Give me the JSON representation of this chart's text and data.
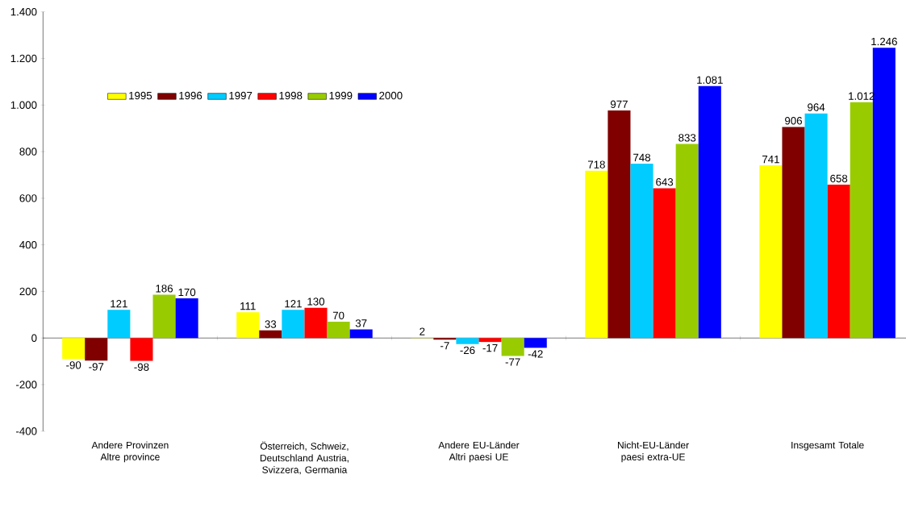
{
  "chart_data": {
    "type": "bar",
    "categories": [
      "Andere Provinzen Altre province",
      "Österreich, Schweiz, Deutschland Austria, Svizzera, Germania",
      "Andere EU-Länder Altri paesi UE",
      "Nicht-EU-Länder paesi extra-UE",
      "Insgesamt Totale"
    ],
    "series": [
      {
        "name": "1995",
        "color": "#ffff00",
        "values": [
          -90,
          111,
          2,
          718,
          741
        ],
        "value_labels": [
          "-90",
          "111",
          "2",
          "718",
          "741"
        ]
      },
      {
        "name": "1996",
        "color": "#800000",
        "values": [
          -97,
          33,
          -7,
          977,
          906
        ],
        "value_labels": [
          "-97",
          "33",
          "-7",
          "977",
          "906"
        ]
      },
      {
        "name": "1997",
        "color": "#00ccff",
        "values": [
          121,
          121,
          -26,
          748,
          964
        ],
        "value_labels": [
          "121",
          "121",
          "-26",
          "748",
          "964"
        ]
      },
      {
        "name": "1998",
        "color": "#ff0000",
        "values": [
          -98,
          130,
          -17,
          643,
          658
        ],
        "value_labels": [
          "-98",
          "130",
          "-17",
          "643",
          "658"
        ]
      },
      {
        "name": "1999",
        "color": "#99cc00",
        "values": [
          186,
          70,
          -77,
          833,
          1012
        ],
        "value_labels": [
          "186",
          "70",
          "-77",
          "833",
          "1.012"
        ]
      },
      {
        "name": "2000",
        "color": "#0000ff",
        "values": [
          170,
          37,
          -42,
          1081,
          1246
        ],
        "value_labels": [
          "170",
          "37",
          "-42",
          "1.081",
          "1.246"
        ]
      }
    ],
    "ylim": [
      -400,
      1400
    ],
    "yticks": [
      {
        "value": -400,
        "label": "-400"
      },
      {
        "value": -200,
        "label": "-200"
      },
      0,
      200,
      400,
      600,
      800,
      {
        "value": 1000,
        "label": "1.000"
      },
      {
        "value": 1200,
        "label": "1.200"
      },
      {
        "value": 1400,
        "label": "1.400"
      }
    ],
    "legend": "top left"
  }
}
